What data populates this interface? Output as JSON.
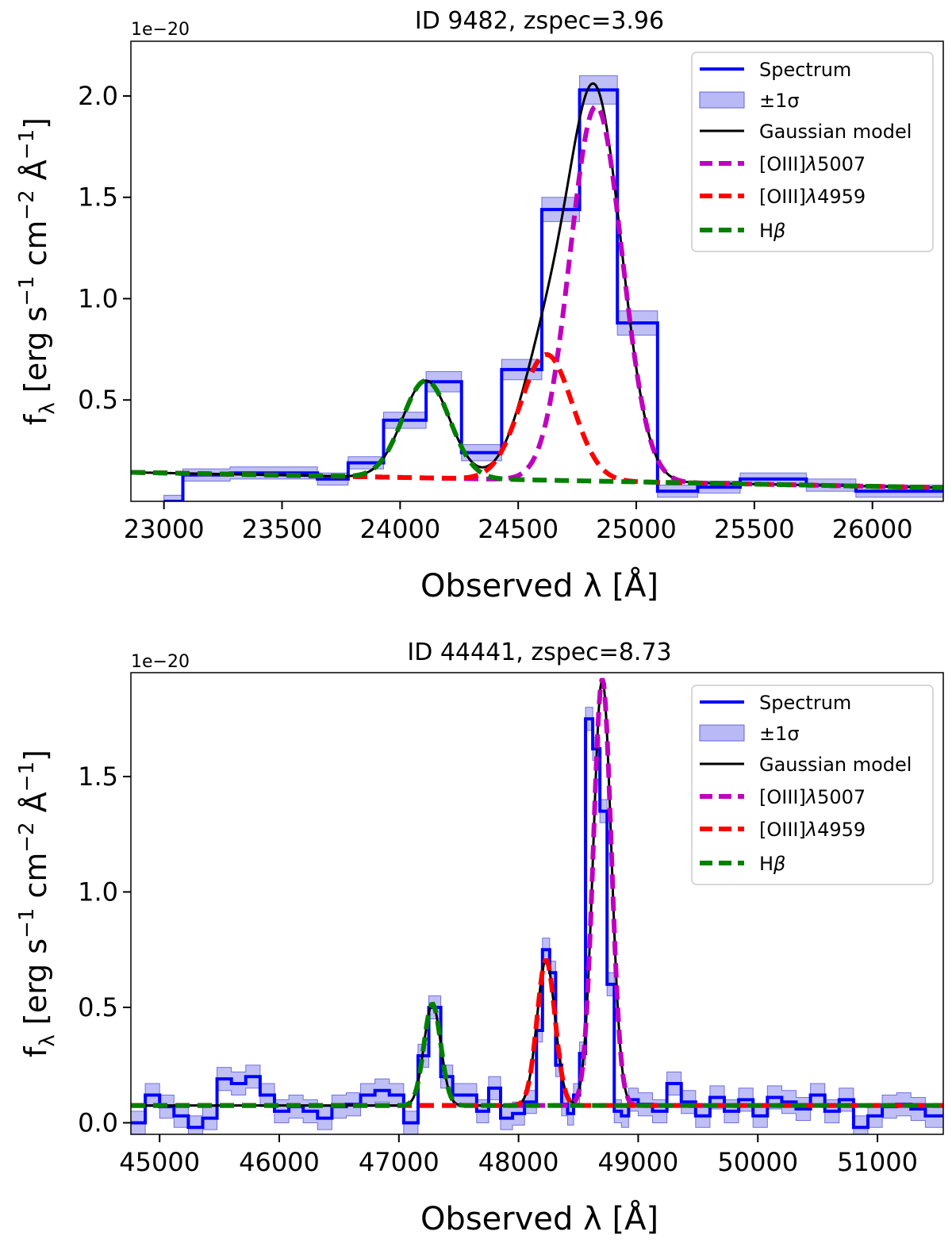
{
  "chart_data": [
    {
      "type": "line",
      "title": "ID 9482, zspec=3.96",
      "xlabel": "Observed λ [Å]",
      "ylabel": "fλ [erg s⁻¹ cm⁻² Å⁻¹]",
      "ylabel_parts": {
        "f": "f",
        "sub": "λ",
        "rest": " [erg s",
        "m1": "−1",
        "cm": " cm",
        "m2": "−2",
        "ang": " Å",
        "m3": "−1",
        "close": "]"
      },
      "offset_text": "1e−20",
      "xlim": [
        22860,
        26300
      ],
      "ylim": [
        0.0,
        2.27
      ],
      "xticks": [
        23000,
        23500,
        24000,
        24500,
        25000,
        25500,
        26000
      ],
      "xtick_labels": [
        "23000",
        "23500",
        "24000",
        "24500",
        "25000",
        "25500",
        "26000"
      ],
      "yticks": [
        0.5,
        1.0,
        1.5,
        2.0
      ],
      "ytick_labels": [
        "0.5",
        "1.0",
        "1.5",
        "2.0"
      ],
      "continuum": {
        "a": 0.14,
        "b": -2.2e-05,
        "x0": 23000
      },
      "components": [
        {
          "key": "oiii5007",
          "center": 24830,
          "amp": 1.85,
          "sigma": 110
        },
        {
          "key": "oiii4959",
          "center": 24620,
          "amp": 0.62,
          "sigma": 110
        },
        {
          "key": "hbeta",
          "center": 24110,
          "amp": 0.48,
          "sigma": 100
        }
      ],
      "spectrum": {
        "edges": [
          23000,
          23080,
          23280,
          23650,
          23780,
          23930,
          24110,
          24260,
          24430,
          24600,
          24760,
          24920,
          25090,
          25260,
          25440,
          25720,
          25930,
          26100,
          26300
        ],
        "values": [
          0.0,
          0.13,
          0.14,
          0.11,
          0.19,
          0.4,
          0.59,
          0.24,
          0.65,
          1.44,
          2.03,
          0.88,
          0.05,
          0.07,
          0.11,
          0.08,
          0.05,
          0.05
        ],
        "errors": [
          0.03,
          0.03,
          0.03,
          0.03,
          0.03,
          0.04,
          0.05,
          0.04,
          0.05,
          0.06,
          0.07,
          0.06,
          0.03,
          0.03,
          0.03,
          0.03,
          0.03,
          0.03
        ]
      },
      "legend": {
        "placement": "upper right",
        "entries": [
          {
            "key": "spectrum",
            "label": "Spectrum",
            "color": "#0000ff",
            "style": "solid"
          },
          {
            "key": "sigma",
            "label": "±1σ",
            "color": "#8080ee",
            "style": "patch"
          },
          {
            "key": "model",
            "label": "Gaussian model",
            "color": "#000000",
            "style": "solid"
          },
          {
            "key": "oiii5007",
            "label_main": "[OIII]",
            "label_lam": "λ",
            "label_num": "5007",
            "color": "#bf00bf",
            "style": "dashed"
          },
          {
            "key": "oiii4959",
            "label_main": "[OIII]",
            "label_lam": "λ",
            "label_num": "4959",
            "color": "#ff0000",
            "style": "dashed"
          },
          {
            "key": "hbeta",
            "label_main": "H",
            "label_lam": "β",
            "color": "#008000",
            "style": "dashed"
          }
        ]
      }
    },
    {
      "type": "line",
      "title": "ID 44441, zspec=8.73",
      "xlabel": "Observed λ [Å]",
      "ylabel": "fλ [erg s⁻¹ cm⁻² Å⁻¹]",
      "ylabel_parts": {
        "f": "f",
        "sub": "λ",
        "rest": " [erg s",
        "m1": "−1",
        "cm": " cm",
        "m2": "−2",
        "ang": " Å",
        "m3": "−1",
        "close": "]"
      },
      "offset_text": "1e−20",
      "xlim": [
        44760,
        51550
      ],
      "ylim": [
        -0.05,
        1.95
      ],
      "xticks": [
        45000,
        46000,
        47000,
        48000,
        49000,
        50000,
        51000
      ],
      "xtick_labels": [
        "45000",
        "46000",
        "47000",
        "48000",
        "49000",
        "50000",
        "51000"
      ],
      "yticks": [
        0.0,
        0.5,
        1.0,
        1.5
      ],
      "ytick_labels": [
        "0.0",
        "0.5",
        "1.0",
        "1.5"
      ],
      "continuum": {
        "a": 0.075,
        "b": 0.0,
        "x0": 45000
      },
      "components": [
        {
          "key": "oiii5007",
          "center": 48700,
          "amp": 1.85,
          "sigma": 75
        },
        {
          "key": "oiii4959",
          "center": 48230,
          "amp": 0.63,
          "sigma": 75
        },
        {
          "key": "hbeta",
          "center": 47280,
          "amp": 0.44,
          "sigma": 70
        }
      ],
      "spectrum": {
        "edges": [
          44760,
          44880,
          45000,
          45120,
          45240,
          45360,
          45480,
          45600,
          45720,
          45840,
          45960,
          46080,
          46200,
          46320,
          46440,
          46560,
          46680,
          46800,
          46920,
          47040,
          47160,
          47250,
          47350,
          47450,
          47550,
          47650,
          47750,
          47850,
          47950,
          48050,
          48150,
          48200,
          48260,
          48310,
          48360,
          48410,
          48460,
          48510,
          48560,
          48620,
          48680,
          48740,
          48800,
          48860,
          48920,
          49000,
          49120,
          49240,
          49360,
          49480,
          49600,
          49720,
          49840,
          49960,
          50080,
          50200,
          50320,
          50440,
          50560,
          50680,
          50800,
          50920,
          51040,
          51160,
          51280,
          51400,
          51550
        ],
        "values": [
          0.0,
          0.12,
          0.07,
          0.03,
          -0.02,
          0.02,
          0.19,
          0.17,
          0.2,
          0.12,
          0.05,
          0.07,
          0.05,
          0.02,
          0.07,
          0.08,
          0.12,
          0.14,
          0.12,
          0.0,
          0.29,
          0.5,
          0.2,
          0.12,
          0.12,
          0.05,
          0.15,
          0.02,
          0.04,
          0.09,
          0.4,
          0.75,
          0.65,
          0.25,
          0.08,
          0.04,
          0.12,
          0.3,
          1.75,
          1.62,
          1.35,
          0.6,
          0.05,
          0.03,
          0.1,
          0.08,
          0.05,
          0.17,
          0.09,
          0.03,
          0.11,
          0.05,
          0.1,
          0.03,
          0.11,
          0.09,
          0.06,
          0.12,
          0.05,
          0.1,
          -0.02,
          0.03,
          0.07,
          0.08,
          0.06,
          0.03
        ],
        "err": 0.05
      },
      "legend": {
        "placement": "upper right",
        "entries": [
          {
            "key": "spectrum",
            "label": "Spectrum",
            "color": "#0000ff",
            "style": "solid"
          },
          {
            "key": "sigma",
            "label": "±1σ",
            "color": "#8080ee",
            "style": "patch"
          },
          {
            "key": "model",
            "label": "Gaussian model",
            "color": "#000000",
            "style": "solid"
          },
          {
            "key": "oiii5007",
            "label_main": "[OIII]",
            "label_lam": "λ",
            "label_num": "5007",
            "color": "#bf00bf",
            "style": "dashed"
          },
          {
            "key": "oiii4959",
            "label_main": "[OIII]",
            "label_lam": "λ",
            "label_num": "4959",
            "color": "#ff0000",
            "style": "dashed"
          },
          {
            "key": "hbeta",
            "label_main": "H",
            "label_lam": "β",
            "color": "#008000",
            "style": "dashed"
          }
        ]
      }
    }
  ]
}
